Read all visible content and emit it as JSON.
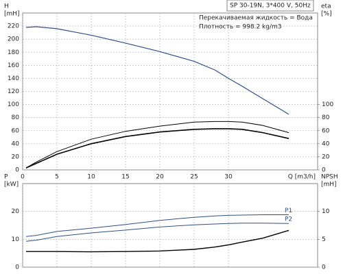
{
  "chart_data": [
    {
      "type": "line",
      "annotations": [
        "SP 30-19N, 3*400 V, 50Hz",
        "Перекачиваемая жидкость = Вода",
        "Плотность = 998.2 kg/m3"
      ],
      "ylabel": "H",
      "yunit": "[mH]",
      "y2label": "eta",
      "y2unit": "[%]",
      "xlabel": "Q [m3/h]",
      "xlim": [
        0,
        43
      ],
      "xticks": [
        0,
        5,
        10,
        15,
        20,
        25,
        30
      ],
      "xtick_labels": true,
      "ylim": [
        0,
        240
      ],
      "yticks": [
        0,
        20,
        40,
        60,
        80,
        100,
        120,
        140,
        160,
        180,
        200,
        220
      ],
      "y2lim": [
        0,
        240
      ],
      "y2ticks": [
        0,
        20,
        40,
        60,
        80,
        100
      ],
      "grid": true,
      "x": [
        0.5,
        2,
        5,
        10,
        15,
        20,
        25,
        28,
        30,
        32,
        35,
        38.8
      ],
      "series": [
        {
          "color": "#2e4d8f",
          "values": [
            218,
            219,
            216,
            206,
            194,
            181,
            166,
            153,
            140,
            128,
            109,
            85
          ]
        },
        {
          "color": "#000000",
          "axis": "y2",
          "values": [
            3,
            12,
            28,
            47,
            59,
            67,
            73,
            74,
            74,
            73,
            68,
            57
          ]
        },
        {
          "color": "#000000",
          "axis": "y2",
          "values": [
            3,
            10,
            24,
            40,
            51,
            58,
            62,
            63,
            63,
            62,
            57,
            48
          ]
        }
      ]
    },
    {
      "type": "line",
      "ylabel": "P",
      "yunit": "[kW]",
      "y2label": "NPSH",
      "y2unit": "[mH]",
      "xlim": [
        0,
        43
      ],
      "xticks": [
        0,
        5,
        10,
        15,
        20,
        25,
        30
      ],
      "xtick_labels": false,
      "ylim": [
        0,
        30
      ],
      "yticks": [
        0,
        10,
        20
      ],
      "y2lim": [
        0,
        15
      ],
      "y2ticks": [
        0,
        5,
        10
      ],
      "grid": true,
      "x": [
        0.5,
        2,
        5,
        10,
        15,
        20,
        25,
        28,
        30,
        32,
        35,
        38.8
      ],
      "series": [
        {
          "name": "P1",
          "color": "#2e4d8f",
          "values": [
            11,
            11.4,
            12.8,
            14,
            15.3,
            16.8,
            17.9,
            18.4,
            18.6,
            18.7,
            18.8,
            18.8
          ]
        },
        {
          "name": "P2",
          "color": "#2e4d8f",
          "values": [
            9.3,
            9.7,
            11,
            12.3,
            13.3,
            14.4,
            15.2,
            15.5,
            15.7,
            15.8,
            15.8,
            15.7
          ]
        },
        {
          "color": "#000000",
          "axis": "y2",
          "values": [
            2.8,
            2.8,
            2.8,
            2.75,
            2.8,
            2.9,
            3.2,
            3.6,
            4,
            4.5,
            5.2,
            6.6
          ]
        }
      ]
    }
  ]
}
